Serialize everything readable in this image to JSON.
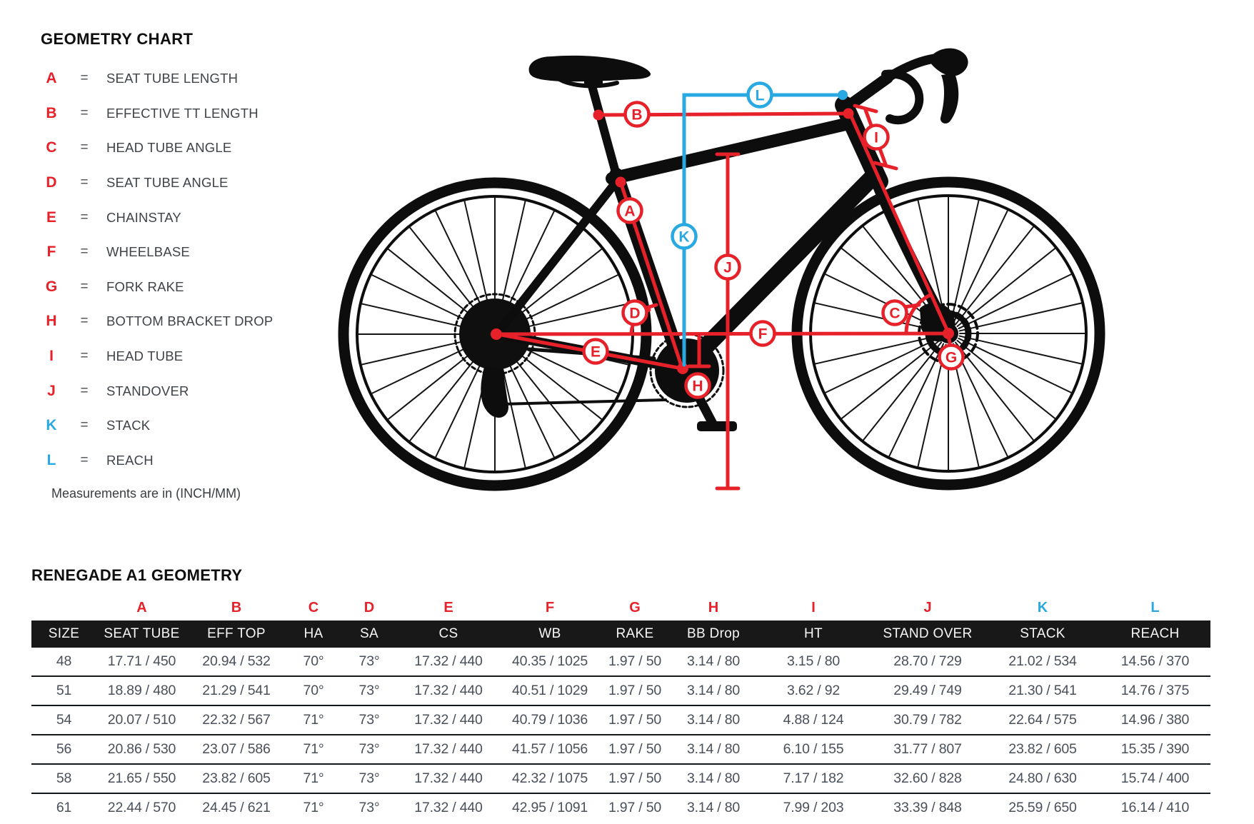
{
  "colors": {
    "red": "#e62129",
    "blue": "#29a9e2",
    "silhouette": "#0d0d0d",
    "header_bar": "#181818"
  },
  "legend": {
    "title": "GEOMETRY CHART",
    "equals": "=",
    "items": [
      {
        "letter": "A",
        "color": "red",
        "label": "SEAT TUBE LENGTH"
      },
      {
        "letter": "B",
        "color": "red",
        "label": "EFFECTIVE TT LENGTH"
      },
      {
        "letter": "C",
        "color": "red",
        "label": "HEAD TUBE ANGLE"
      },
      {
        "letter": "D",
        "color": "red",
        "label": "SEAT TUBE ANGLE"
      },
      {
        "letter": "E",
        "color": "red",
        "label": "CHAINSTAY"
      },
      {
        "letter": "F",
        "color": "red",
        "label": "WHEELBASE"
      },
      {
        "letter": "G",
        "color": "red",
        "label": "FORK RAKE"
      },
      {
        "letter": "H",
        "color": "red",
        "label": "BOTTOM BRACKET DROP"
      },
      {
        "letter": "I",
        "color": "red",
        "label": "HEAD TUBE"
      },
      {
        "letter": "J",
        "color": "red",
        "label": "STANDOVER"
      },
      {
        "letter": "K",
        "color": "blue",
        "label": "STACK"
      },
      {
        "letter": "L",
        "color": "blue",
        "label": "REACH"
      }
    ],
    "note": "Measurements are in (INCH/MM)"
  },
  "diagram": {
    "callouts": [
      {
        "letter": "A",
        "color": "red"
      },
      {
        "letter": "B",
        "color": "red"
      },
      {
        "letter": "C",
        "color": "red"
      },
      {
        "letter": "D",
        "color": "red"
      },
      {
        "letter": "E",
        "color": "red"
      },
      {
        "letter": "F",
        "color": "red"
      },
      {
        "letter": "G",
        "color": "red"
      },
      {
        "letter": "H",
        "color": "red"
      },
      {
        "letter": "I",
        "color": "red"
      },
      {
        "letter": "J",
        "color": "red"
      },
      {
        "letter": "K",
        "color": "blue"
      },
      {
        "letter": "L",
        "color": "blue"
      }
    ]
  },
  "table": {
    "title": "RENEGADE A1 GEOMETRY",
    "letters": [
      {
        "letter": "A",
        "color": "red"
      },
      {
        "letter": "B",
        "color": "red"
      },
      {
        "letter": "C",
        "color": "red"
      },
      {
        "letter": "D",
        "color": "red"
      },
      {
        "letter": "E",
        "color": "red"
      },
      {
        "letter": "F",
        "color": "red"
      },
      {
        "letter": "G",
        "color": "red"
      },
      {
        "letter": "H",
        "color": "red"
      },
      {
        "letter": "I",
        "color": "red"
      },
      {
        "letter": "J",
        "color": "red"
      },
      {
        "letter": "K",
        "color": "blue"
      },
      {
        "letter": "L",
        "color": "blue"
      }
    ],
    "headers": [
      "SIZE",
      "SEAT TUBE",
      "EFF TOP",
      "HA",
      "SA",
      "CS",
      "WB",
      "RAKE",
      "BB Drop",
      "HT",
      "STAND OVER",
      "STACK",
      "REACH"
    ],
    "rows": [
      [
        "48",
        "17.71 / 450",
        "20.94 / 532",
        "70°",
        "73°",
        "17.32 / 440",
        "40.35 / 1025",
        "1.97 / 50",
        "3.14 / 80",
        "3.15 / 80",
        "28.70 / 729",
        "21.02 / 534",
        "14.56 / 370"
      ],
      [
        "51",
        "18.89 / 480",
        "21.29 / 541",
        "70°",
        "73°",
        "17.32 / 440",
        "40.51 / 1029",
        "1.97 / 50",
        "3.14 / 80",
        "3.62 / 92",
        "29.49 / 749",
        "21.30 / 541",
        "14.76 / 375"
      ],
      [
        "54",
        "20.07 / 510",
        "22.32 / 567",
        "71°",
        "73°",
        "17.32 / 440",
        "40.79 / 1036",
        "1.97 / 50",
        "3.14 / 80",
        "4.88 / 124",
        "30.79 / 782",
        "22.64 / 575",
        "14.96 / 380"
      ],
      [
        "56",
        "20.86 / 530",
        "23.07 / 586",
        "71°",
        "73°",
        "17.32 / 440",
        "41.57 / 1056",
        "1.97 / 50",
        "3.14 / 80",
        "6.10 / 155",
        "31.77 / 807",
        "23.82 / 605",
        "15.35 / 390"
      ],
      [
        "58",
        "21.65 / 550",
        "23.82 / 605",
        "71°",
        "73°",
        "17.32 / 440",
        "42.32 / 1075",
        "1.97 / 50",
        "3.14 / 80",
        "7.17 / 182",
        "32.60 / 828",
        "24.80 / 630",
        "15.74 / 400"
      ],
      [
        "61",
        "22.44 / 570",
        "24.45 / 621",
        "71°",
        "73°",
        "17.32 / 440",
        "42.95 / 1091",
        "1.97 / 50",
        "3.14 / 80",
        "7.99 / 203",
        "33.39 / 848",
        "25.59 / 650",
        "16.14 / 410"
      ]
    ]
  }
}
